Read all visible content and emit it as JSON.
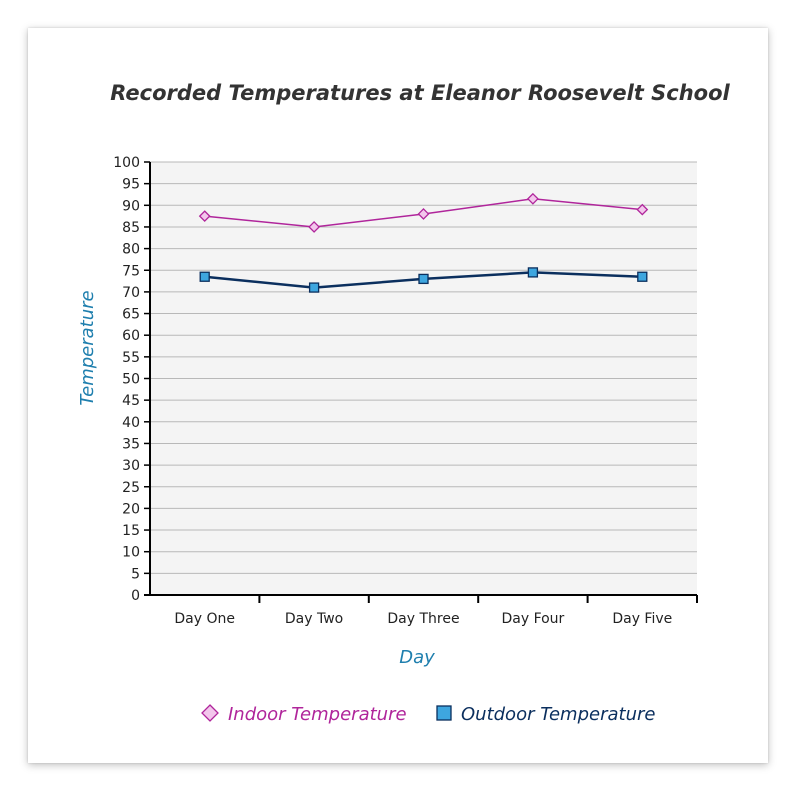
{
  "chart_data": {
    "type": "line",
    "title": "Recorded Temperatures at Eleanor Roosevelt School",
    "xlabel": "Day",
    "ylabel": "Temperature",
    "categories": [
      "Day One",
      "Day Two",
      "Day Three",
      "Day Four",
      "Day Five"
    ],
    "series": [
      {
        "name": "Indoor Temperature",
        "values": [
          87.5,
          85,
          88,
          91.5,
          89
        ],
        "color": "#b0259b",
        "marker": "diamond"
      },
      {
        "name": "Outdoor Temperature",
        "values": [
          73.5,
          71,
          73,
          74.5,
          73.5
        ],
        "color": "#0b2f5e",
        "marker": "square"
      }
    ],
    "ylim": [
      0,
      100
    ],
    "yticks": [
      0,
      5,
      10,
      15,
      20,
      25,
      30,
      35,
      40,
      45,
      50,
      55,
      60,
      65,
      70,
      75,
      80,
      85,
      90,
      95,
      100
    ],
    "grid": true,
    "legend_position": "bottom-center"
  }
}
